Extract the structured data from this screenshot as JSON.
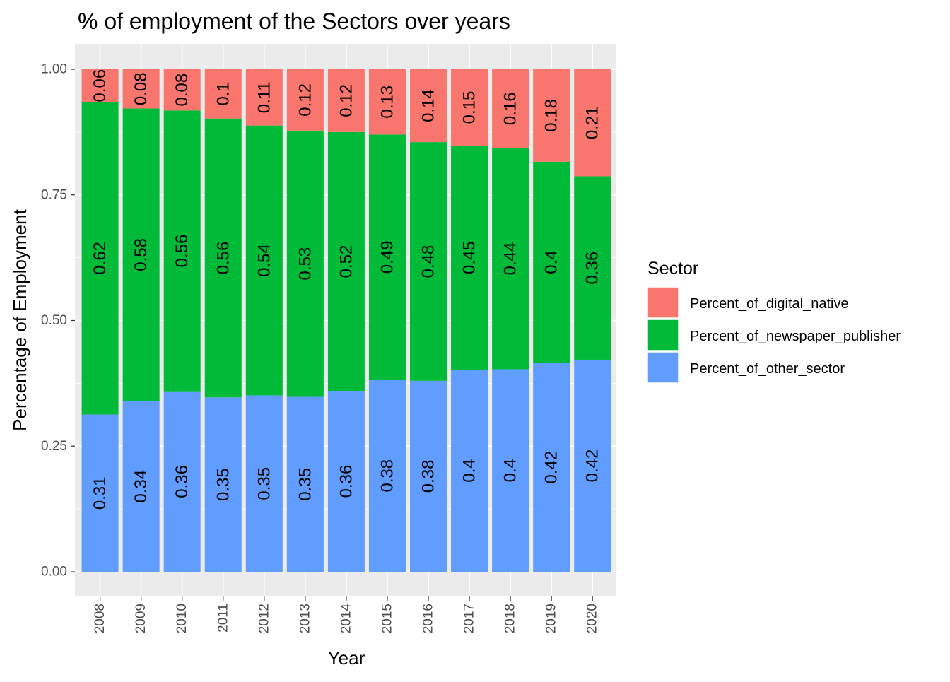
{
  "chart_data": {
    "type": "bar",
    "stacked": true,
    "title": "% of employment of the Sectors over years",
    "xlabel": "Year",
    "ylabel": "Percentage of Employment",
    "ylim": [
      0,
      1
    ],
    "yticks": [
      "0.00",
      "0.25",
      "0.50",
      "0.75",
      "1.00"
    ],
    "grid": true,
    "legend_position": "right",
    "legend_title": "Sector",
    "categories": [
      "2008",
      "2009",
      "2010",
      "2011",
      "2012",
      "2013",
      "2014",
      "2015",
      "2016",
      "2017",
      "2018",
      "2019",
      "2020"
    ],
    "series": [
      {
        "name": "Percent_of_digital_native",
        "color": "#F8766D",
        "values": [
          0.065,
          0.078,
          0.082,
          0.098,
          0.112,
          0.122,
          0.125,
          0.13,
          0.145,
          0.152,
          0.157,
          0.184,
          0.213
        ],
        "labels": [
          "0.06",
          "0.08",
          "0.08",
          "0.1",
          "0.11",
          "0.12",
          "0.12",
          "0.13",
          "0.14",
          "0.15",
          "0.16",
          "0.18",
          "0.21"
        ]
      },
      {
        "name": "Percent_of_newspaper_publisher",
        "color": "#00BA38",
        "values": [
          0.622,
          0.582,
          0.559,
          0.555,
          0.537,
          0.53,
          0.515,
          0.488,
          0.475,
          0.446,
          0.44,
          0.4,
          0.365
        ],
        "labels": [
          "0.62",
          "0.58",
          "0.56",
          "0.56",
          "0.54",
          "0.53",
          "0.52",
          "0.49",
          "0.48",
          "0.45",
          "0.44",
          "0.4",
          "0.36"
        ]
      },
      {
        "name": "Percent_of_other_sector",
        "color": "#619CFF",
        "values": [
          0.313,
          0.34,
          0.359,
          0.347,
          0.351,
          0.348,
          0.36,
          0.382,
          0.38,
          0.402,
          0.403,
          0.416,
          0.422
        ],
        "labels": [
          "0.31",
          "0.34",
          "0.36",
          "0.35",
          "0.35",
          "0.35",
          "0.36",
          "0.38",
          "0.38",
          "0.4",
          "0.4",
          "0.42",
          "0.42"
        ]
      }
    ]
  }
}
